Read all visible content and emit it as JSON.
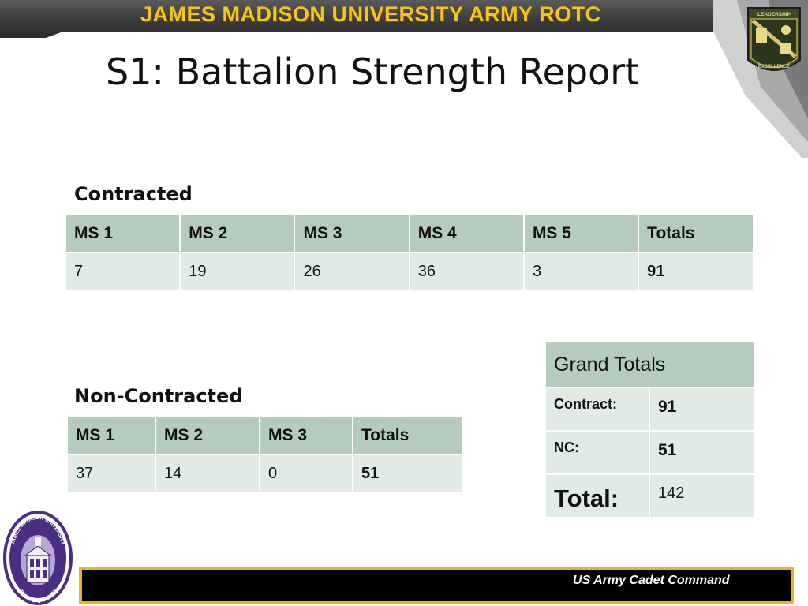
{
  "banner": {
    "title": "JAMES MADISON UNIVERSITY ARMY ROTC"
  },
  "emblem": {
    "top_text": "LEADERSHIP",
    "bottom_text": "EXCELLENCE"
  },
  "slide": {
    "title": "S1: Battalion Strength Report"
  },
  "contracted": {
    "label": "Contracted",
    "headers": [
      "MS 1",
      "MS 2",
      "MS 3",
      "MS 4",
      "MS 5",
      "Totals"
    ],
    "values": [
      "7",
      "19",
      "26",
      "36",
      "3",
      "91"
    ]
  },
  "non_contracted": {
    "label": "Non-Contracted",
    "headers": [
      "MS 1",
      "MS 2",
      "MS 3",
      "Totals"
    ],
    "values": [
      "37",
      "14",
      "0",
      "51"
    ]
  },
  "grand_totals": {
    "header": "Grand Totals",
    "rows": [
      {
        "label": "Contract:",
        "value": "91"
      },
      {
        "label": "NC:",
        "value": "51"
      },
      {
        "label": "Total:",
        "value": "142"
      }
    ]
  },
  "seal": {
    "text_top": "JAMES MADISON UNIVERSITY",
    "text_bottom": "DUKE BATTALION"
  },
  "footer": {
    "text": "US Army Cadet Command"
  },
  "colors": {
    "header_cell": "#b5cbbd",
    "body_cell": "#e1ebe5",
    "banner_text": "#f5c518",
    "footer_border": "#e6b81e",
    "seal_purple": "#4b2e83"
  }
}
